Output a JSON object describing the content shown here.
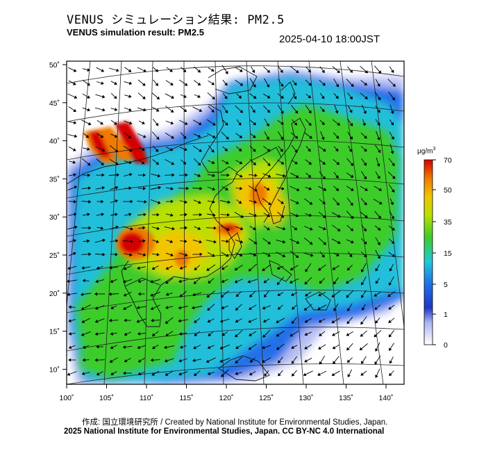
{
  "header": {
    "title_jp": "VENUS シミュレーション結果: PM2.5",
    "title_en": "VENUS simulation result: PM2.5",
    "timestamp": "2025-04-10 18:00JST"
  },
  "map": {
    "lon_labels": [
      "100˚",
      "105˚",
      "110˚",
      "115˚",
      "120˚",
      "125˚",
      "130˚",
      "135˚",
      "140˚"
    ],
    "lat_labels": [
      "50˚",
      "45˚",
      "40˚",
      "35˚",
      "30˚",
      "25˚",
      "20˚",
      "15˚",
      "10˚"
    ]
  },
  "legend": {
    "unit_main": "μg/m",
    "unit_sup": "3",
    "ticks": [
      "70",
      "50",
      "35",
      "15",
      "5",
      "1",
      "0"
    ],
    "colors": [
      "#d40000",
      "#f07a00",
      "#f2c400",
      "#b8e000",
      "#3ccc2a",
      "#20c8d8",
      "#2070e8",
      "#1e36c8",
      "#aab4f0",
      "#ffffff"
    ]
  },
  "footer": {
    "credit_line1": "作成: 国立環境研究所 / Created by National Institute for Environmental Studies, Japan.",
    "credit_line2": "2025 National Institute for Environmental Studies, Japan. CC BY-NC 4.0 International"
  }
}
